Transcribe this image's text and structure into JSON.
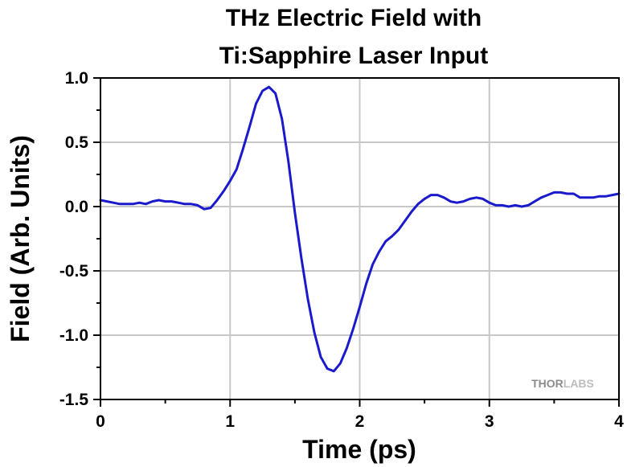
{
  "chart_data": {
    "type": "line",
    "title_lines": [
      "THz Electric Field with",
      "Ti:Sapphire Laser Input"
    ],
    "xlabel": "Time (ps)",
    "ylabel": "Field (Arb. Units)",
    "xlim": [
      0,
      4
    ],
    "ylim": [
      -1.5,
      1.0
    ],
    "x_ticks": [
      0,
      1,
      2,
      3,
      4
    ],
    "x_tick_labels": [
      "0",
      "1",
      "2",
      "3",
      "4"
    ],
    "y_ticks": [
      1.0,
      0.5,
      0.0,
      -0.5,
      -1.0,
      -1.5
    ],
    "y_tick_labels": [
      "1.0",
      "0.5",
      "0.0",
      "-0.5",
      "-1.0",
      "-1.5"
    ],
    "grid": true,
    "line_color": "#1a1acc",
    "series": [
      {
        "x": [
          0.0,
          0.05,
          0.1,
          0.15,
          0.2,
          0.25,
          0.3,
          0.35,
          0.4,
          0.45,
          0.5,
          0.55,
          0.6,
          0.65,
          0.7,
          0.75,
          0.8,
          0.85,
          0.9,
          0.95,
          1.0,
          1.05,
          1.1,
          1.15,
          1.2,
          1.25,
          1.3,
          1.35,
          1.4,
          1.45,
          1.5,
          1.55,
          1.6,
          1.65,
          1.7,
          1.75,
          1.8,
          1.85,
          1.9,
          1.95,
          2.0,
          2.05,
          2.1,
          2.15,
          2.2,
          2.25,
          2.3,
          2.35,
          2.4,
          2.45,
          2.5,
          2.55,
          2.6,
          2.65,
          2.7,
          2.75,
          2.8,
          2.85,
          2.9,
          2.95,
          3.0,
          3.05,
          3.1,
          3.15,
          3.2,
          3.25,
          3.3,
          3.35,
          3.4,
          3.45,
          3.5,
          3.55,
          3.6,
          3.65,
          3.7,
          3.75,
          3.8,
          3.85,
          3.9,
          3.95,
          4.0
        ],
        "y": [
          0.05,
          0.04,
          0.03,
          0.02,
          0.02,
          0.02,
          0.03,
          0.02,
          0.04,
          0.05,
          0.04,
          0.04,
          0.03,
          0.02,
          0.02,
          0.01,
          -0.02,
          -0.01,
          0.05,
          0.12,
          0.2,
          0.29,
          0.45,
          0.62,
          0.8,
          0.9,
          0.93,
          0.88,
          0.68,
          0.35,
          -0.05,
          -0.4,
          -0.72,
          -0.98,
          -1.17,
          -1.26,
          -1.28,
          -1.22,
          -1.1,
          -0.95,
          -0.78,
          -0.6,
          -0.45,
          -0.35,
          -0.27,
          -0.23,
          -0.18,
          -0.11,
          -0.04,
          0.02,
          0.06,
          0.09,
          0.09,
          0.07,
          0.04,
          0.03,
          0.04,
          0.06,
          0.07,
          0.06,
          0.03,
          0.01,
          0.01,
          0.0,
          0.01,
          0.0,
          0.01,
          0.04,
          0.07,
          0.09,
          0.11,
          0.11,
          0.1,
          0.1,
          0.07,
          0.07,
          0.07,
          0.08,
          0.08,
          0.09,
          0.1
        ]
      }
    ]
  },
  "watermark": {
    "part1": "THOR",
    "part2": "LABS"
  }
}
